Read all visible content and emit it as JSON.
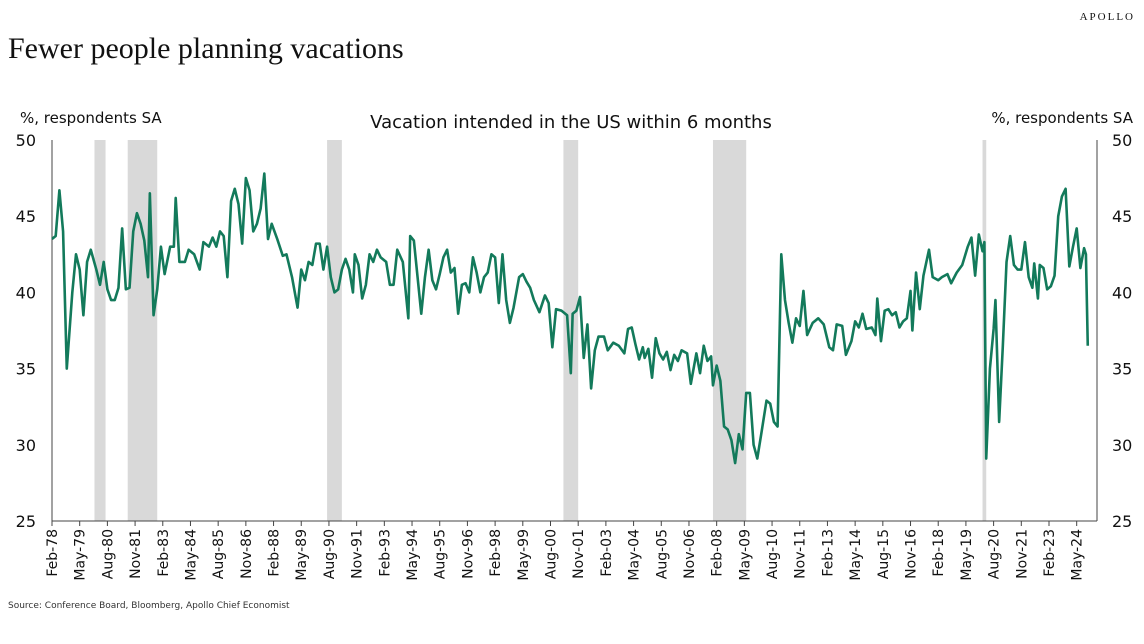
{
  "chart_data": {
    "type": "line",
    "brand": "APOLLO",
    "title": "Fewer people planning vacations",
    "subtitle": "Vacation intended in the US within 6 months",
    "y_label": "%, respondents SA",
    "y2_label": "%, respondents SA",
    "source": "Source: Conference Board, Bloomberg, Apollo Chief Economist",
    "xlim": [
      "Feb-78",
      "Apr-25"
    ],
    "xticks": [
      "Feb-78",
      "May-79",
      "Aug-80",
      "Nov-81",
      "Feb-83",
      "May-84",
      "Aug-85",
      "Nov-86",
      "Feb-88",
      "May-89",
      "Aug-90",
      "Nov-91",
      "Feb-93",
      "May-94",
      "Aug-95",
      "Nov-96",
      "Feb-98",
      "May-99",
      "Aug-00",
      "Nov-01",
      "Feb-03",
      "May-04",
      "Aug-05",
      "Nov-06",
      "Feb-08",
      "May-09",
      "Aug-10",
      "Nov-11",
      "Feb-13",
      "May-14",
      "Aug-15",
      "Nov-16",
      "Feb-18",
      "May-19",
      "Aug-20",
      "Nov-21",
      "Feb-23",
      "May-24"
    ],
    "ylim": [
      25,
      50
    ],
    "yticks": [
      25,
      30,
      35,
      40,
      45,
      50
    ],
    "y2lim": [
      25,
      50
    ],
    "y2ticks": [
      25,
      30,
      35,
      40,
      45,
      50
    ],
    "shade_color": "#d9d9d9",
    "shaded_periods": [
      [
        "Jan-80",
        "Jul-80"
      ],
      [
        "Jul-81",
        "Nov-82"
      ],
      [
        "Jul-90",
        "Mar-91"
      ],
      [
        "Mar-01",
        "Nov-01"
      ],
      [
        "Dec-07",
        "Jun-09"
      ],
      [
        "Feb-20",
        "Apr-20"
      ]
    ],
    "x": [
      "Feb-78",
      "Apr-78",
      "Jun-78",
      "Aug-78",
      "Oct-78",
      "Jan-79",
      "Mar-79",
      "May-79",
      "Jul-79",
      "Sep-79",
      "Nov-79",
      "Feb-80",
      "Apr-80",
      "Jun-80",
      "Aug-80",
      "Oct-80",
      "Dec-80",
      "Feb-81",
      "Apr-81",
      "Jun-81",
      "Aug-81",
      "Oct-81",
      "Dec-81",
      "Feb-82",
      "Apr-82",
      "Jun-82",
      "Jul-82",
      "Sep-82",
      "Nov-82",
      "Jan-83",
      "Mar-83",
      "Jun-83",
      "Aug-83",
      "Sep-83",
      "Nov-83",
      "Feb-84",
      "Apr-84",
      "Jul-84",
      "Oct-84",
      "Dec-84",
      "Mar-85",
      "May-85",
      "Jul-85",
      "Sep-85",
      "Nov-85",
      "Jan-86",
      "Mar-86",
      "May-86",
      "Jul-86",
      "Sep-86",
      "Nov-86",
      "Jan-87",
      "Mar-87",
      "May-87",
      "Jul-87",
      "Sep-87",
      "Nov-87",
      "Jan-88",
      "Apr-88",
      "Jul-88",
      "Sep-88",
      "Dec-88",
      "Mar-89",
      "May-89",
      "Jul-89",
      "Sep-89",
      "Nov-89",
      "Jan-90",
      "Mar-90",
      "May-90",
      "Jul-90",
      "Sep-90",
      "Nov-90",
      "Jan-91",
      "Mar-91",
      "May-91",
      "Jul-91",
      "Sep-91",
      "Oct-91",
      "Dec-91",
      "Feb-92",
      "Apr-92",
      "Jun-92",
      "Aug-92",
      "Oct-92",
      "Dec-92",
      "Mar-93",
      "May-93",
      "Jul-93",
      "Sep-93",
      "Dec-93",
      "Mar-94",
      "Apr-94",
      "Jun-94",
      "Aug-94",
      "Oct-94",
      "Dec-94",
      "Feb-95",
      "Apr-95",
      "Jun-95",
      "Aug-95",
      "Oct-95",
      "Dec-95",
      "Feb-96",
      "Apr-96",
      "Jun-96",
      "Aug-96",
      "Oct-96",
      "Dec-96",
      "Feb-97",
      "Apr-97",
      "Jun-97",
      "Aug-97",
      "Oct-97",
      "Dec-97",
      "Feb-98",
      "Apr-98",
      "Jun-98",
      "Aug-98",
      "Oct-98",
      "Dec-98",
      "Mar-99",
      "May-99",
      "Jul-99",
      "Sep-99",
      "Nov-99",
      "Feb-00",
      "May-00",
      "Jul-00",
      "Sep-00",
      "Nov-00",
      "Feb-01",
      "May-01",
      "Jul-01",
      "Aug-01",
      "Oct-01",
      "Dec-01",
      "Feb-02",
      "Apr-02",
      "Jun-02",
      "Aug-02",
      "Oct-02",
      "Jan-03",
      "Mar-03",
      "Jun-03",
      "Sep-03",
      "Dec-03",
      "Feb-04",
      "Apr-04",
      "Jun-04",
      "Aug-04",
      "Oct-04",
      "Nov-04",
      "Jan-05",
      "Mar-05",
      "May-05",
      "Jul-05",
      "Sep-05",
      "Nov-05",
      "Jan-06",
      "Mar-06",
      "May-06",
      "Jul-06",
      "Oct-06",
      "Dec-06",
      "Mar-07",
      "May-07",
      "Jul-07",
      "Sep-07",
      "Nov-07",
      "Dec-07",
      "Feb-08",
      "Apr-08",
      "Jun-08",
      "Aug-08",
      "Oct-08",
      "Dec-08",
      "Feb-09",
      "Apr-09",
      "Jun-09",
      "Aug-09",
      "Oct-09",
      "Dec-09",
      "Feb-10",
      "May-10",
      "Jul-10",
      "Sep-10",
      "Nov-10",
      "Jan-11",
      "Mar-11",
      "May-11",
      "Jul-11",
      "Sep-11",
      "Nov-11",
      "Jan-12",
      "Mar-12",
      "Jun-12",
      "Sep-12",
      "Dec-12",
      "Mar-13",
      "May-13",
      "Jul-13",
      "Oct-13",
      "Dec-13",
      "Mar-14",
      "May-14",
      "Jul-14",
      "Sep-14",
      "Nov-14",
      "Feb-15",
      "Apr-15",
      "May-15",
      "Jul-15",
      "Sep-15",
      "Nov-15",
      "Jan-16",
      "Mar-16",
      "May-16",
      "Jul-16",
      "Sep-16",
      "Nov-16",
      "Dec-16",
      "Feb-17",
      "Apr-17",
      "Jun-17",
      "Sep-17",
      "Nov-17",
      "Feb-18",
      "Apr-18",
      "Jul-18",
      "Sep-18",
      "Dec-18",
      "Mar-19",
      "Jun-19",
      "Aug-19",
      "Oct-19",
      "Dec-19",
      "Feb-20",
      "Mar-20",
      "Apr-20",
      "Jun-20",
      "Aug-20",
      "Sep-20",
      "Nov-20",
      "Jan-21",
      "Mar-21",
      "May-21",
      "Jul-21",
      "Sep-21",
      "Nov-21",
      "Jan-22",
      "Mar-22",
      "May-22",
      "Jun-22",
      "Aug-22",
      "Sep-22",
      "Nov-22",
      "Jan-23",
      "Mar-23",
      "May-23",
      "Jul-23",
      "Sep-23",
      "Nov-23",
      "Jan-24",
      "Mar-24",
      "May-24",
      "Jul-24",
      "Sep-24",
      "Oct-24",
      "Nov-24"
    ],
    "series": [
      {
        "color": "#137a5b",
        "values": [
          43.5,
          43.7,
          46.7,
          44,
          35,
          40,
          42.5,
          41.5,
          38.5,
          42,
          42.8,
          41.5,
          40.5,
          42,
          40.2,
          39.5,
          39.5,
          40.3,
          44.2,
          40.2,
          40.3,
          44,
          45.2,
          44.5,
          43.4,
          41,
          46.5,
          38.5,
          40.2,
          43,
          41.2,
          43,
          43,
          46.2,
          42,
          42,
          42.8,
          42.5,
          41.5,
          43.3,
          43,
          43.6,
          43,
          44,
          43.7,
          41,
          46,
          46.8,
          45.8,
          43.2,
          47.5,
          46.7,
          44,
          44.5,
          45.5,
          47.8,
          43.5,
          44.5,
          43.5,
          42.4,
          42.5,
          41,
          39,
          41.5,
          40.8,
          42,
          41.8,
          43.2,
          43.2,
          41.5,
          43,
          41,
          40,
          40.2,
          41.5,
          42.2,
          41.5,
          40,
          42.5,
          41.8,
          39.6,
          40.5,
          42.5,
          42,
          42.8,
          42.3,
          42,
          40.5,
          40.5,
          42.8,
          42,
          38.3,
          43.7,
          43.4,
          41,
          38.6,
          41,
          42.8,
          40.8,
          40.2,
          41.2,
          42.3,
          42.8,
          41.3,
          41.6,
          38.6,
          40.5,
          40.6,
          40,
          42.3,
          41.3,
          40,
          41,
          41.3,
          42.5,
          42.3,
          39.3,
          42.5,
          39.5,
          38,
          39,
          41,
          41.2,
          40.7,
          40.3,
          39.5,
          38.7,
          39.8,
          39.3,
          36.4,
          38.9,
          38.8,
          38.5,
          34.7,
          38.6,
          38.8,
          39.7,
          35.7,
          37.9,
          33.7,
          36.2,
          37.1,
          37.1,
          36.2,
          36.7,
          36.5,
          36,
          37.6,
          37.7,
          36.6,
          35.6,
          36.4,
          35.7,
          36.3,
          34.4,
          37,
          36,
          35.6,
          36.1,
          34.9,
          35.9,
          35.5,
          36.2,
          36,
          34,
          36,
          34.7,
          36.5,
          35.5,
          35.8,
          33.9,
          35.2,
          34.2,
          31.2,
          31,
          30.3,
          28.8,
          30.7,
          29.7,
          33.4,
          33.4,
          30,
          29.1,
          30.6,
          32.9,
          32.7,
          31.5,
          31.2,
          42.5,
          39.5,
          38,
          36.7,
          38.3,
          37.8,
          40.1,
          37.2,
          38,
          38.3,
          37.9,
          36.4,
          36.2,
          37.9,
          37.8,
          35.9,
          36.8,
          38.1,
          37.7,
          38.6,
          37.6,
          37.7,
          37.2,
          39.6,
          36.8,
          38.8,
          38.9,
          38.5,
          38.7,
          37.7,
          38.1,
          38.3,
          40.1,
          37.5,
          41.3,
          38.9,
          41.1,
          42.8,
          41,
          40.8,
          41,
          41.2,
          40.6,
          41.3,
          41.8,
          43,
          43.6,
          41.1,
          43.8,
          42.7,
          43.3,
          29.1,
          35,
          37.6,
          39.5,
          31.5,
          36.5,
          42,
          43.7,
          41.8,
          41.5,
          41.5,
          43.3,
          41,
          40.3,
          41.9,
          39.6,
          41.8,
          41.6,
          40.2,
          40.4,
          41.1,
          45,
          46.3,
          46.8,
          41.7,
          43,
          44.2,
          41.6,
          42.9,
          42.5,
          36.5
        ]
      }
    ]
  }
}
